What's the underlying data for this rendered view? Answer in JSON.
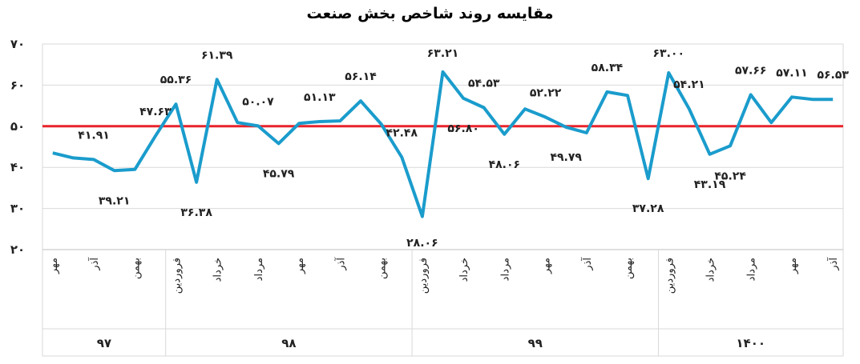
{
  "chart_data": {
    "type": "line",
    "title": "مقایسه روند شاخص بخش صنعت",
    "ylim": [
      20,
      70
    ],
    "y_ticks": [
      "۷۰",
      "۶۰",
      "۵۰",
      "۴۰",
      "۳۰",
      "۲۰"
    ],
    "y_tick_values": [
      70,
      60,
      50,
      40,
      30,
      20
    ],
    "grid": true,
    "reference_line": {
      "value": 50,
      "color": "#e8232a"
    },
    "series_color": "#1a9ccc",
    "x_labels": [
      "مهر",
      "",
      "آذر",
      "",
      "بهمن",
      "",
      "فروردین",
      "",
      "خرداد",
      "",
      "مرداد",
      "",
      "مهر",
      "",
      "آذر",
      "",
      "بهمن",
      "",
      "فروردین",
      "",
      "خرداد",
      "",
      "مرداد",
      "",
      "مهر",
      "",
      "آذر",
      "",
      "بهمن",
      "",
      "فروردین",
      "",
      "خرداد",
      "",
      "مرداد",
      "",
      "مهر",
      "",
      "آذر"
    ],
    "groups": [
      {
        "label": "۹۷",
        "count": 6
      },
      {
        "label": "۹۸",
        "count": 12
      },
      {
        "label": "۹۹",
        "count": 12
      },
      {
        "label": "۱۴۰۰",
        "count": 9
      }
    ],
    "values": [
      43.5,
      42.3,
      41.91,
      39.21,
      39.5,
      47.63,
      55.36,
      36.38,
      61.39,
      50.9,
      50.07,
      45.79,
      50.7,
      51.13,
      51.3,
      56.14,
      50.5,
      42.48,
      28.06,
      63.21,
      56.8,
      54.53,
      48.06,
      54.2,
      52.22,
      49.79,
      48.4,
      58.34,
      57.5,
      37.28,
      63.0,
      54.21,
      43.19,
      45.24,
      57.66,
      50.9,
      57.11,
      56.53,
      56.53
    ],
    "data_labels": [
      {
        "index": 2,
        "text": "۴۱.۹۱"
      },
      {
        "index": 3,
        "text": "۳۹.۲۱"
      },
      {
        "index": 5,
        "text": "۴۷.۶۳"
      },
      {
        "index": 6,
        "text": "۵۵.۳۶"
      },
      {
        "index": 7,
        "text": "۳۶.۳۸"
      },
      {
        "index": 8,
        "text": "۶۱.۳۹"
      },
      {
        "index": 10,
        "text": "۵۰.۰۷"
      },
      {
        "index": 11,
        "text": "۴۵.۷۹"
      },
      {
        "index": 13,
        "text": "۵۱.۱۳"
      },
      {
        "index": 15,
        "text": "۵۶.۱۴"
      },
      {
        "index": 17,
        "text": "۴۲.۴۸"
      },
      {
        "index": 18,
        "text": "۲۸.۰۶"
      },
      {
        "index": 19,
        "text": "۶۳.۲۱"
      },
      {
        "index": 20,
        "text": "۵۶.۸۰"
      },
      {
        "index": 21,
        "text": "۵۴.۵۳"
      },
      {
        "index": 22,
        "text": "۴۸.۰۶"
      },
      {
        "index": 24,
        "text": "۵۲.۲۲"
      },
      {
        "index": 25,
        "text": "۴۹.۷۹"
      },
      {
        "index": 27,
        "text": "۵۸.۳۴"
      },
      {
        "index": 29,
        "text": "۳۷.۲۸"
      },
      {
        "index": 30,
        "text": "۶۳.۰۰"
      },
      {
        "index": 31,
        "text": "۵۴.۲۱"
      },
      {
        "index": 32,
        "text": "۴۳.۱۹"
      },
      {
        "index": 33,
        "text": "۴۵.۲۴"
      },
      {
        "index": 34,
        "text": "۵۷.۶۶"
      },
      {
        "index": 36,
        "text": "۵۷.۱۱"
      },
      {
        "index": 38,
        "text": "۵۶.۵۳"
      }
    ]
  }
}
